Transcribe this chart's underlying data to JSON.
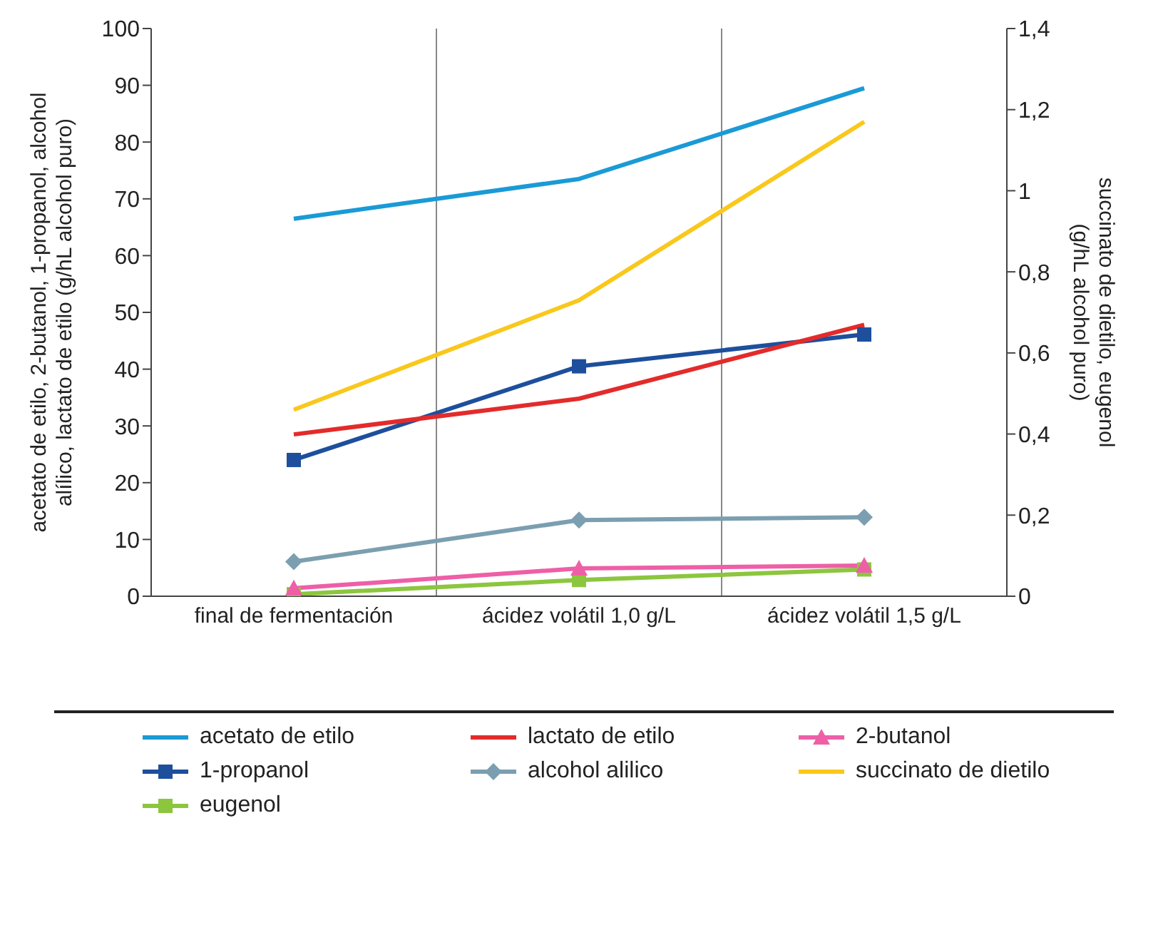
{
  "chart_data": {
    "type": "line",
    "ylabel": "acetato de etilo, 2-butanol, 1-propanol, alcohol alílico, lactato de etilo (g/hL alcohol puro)",
    "y2label": "succinato de dietilo, eugenol (g/hL alcohol puro)",
    "categories": [
      "final de fermentación",
      "ácidez volátil 1,0 g/L",
      "ácidez volátil 1,5 g/L"
    ],
    "series": [
      {
        "name": "acetato de etilo",
        "color": "#1a9ad6",
        "marker": "none",
        "values": [
          66.5,
          73.5,
          89.5
        ]
      },
      {
        "name": "lactato de etilo",
        "color": "#e32b2b",
        "marker": "none",
        "values": [
          28.5,
          34.8,
          47.8
        ]
      },
      {
        "name": "2-butanol",
        "color": "#ee5fa7",
        "marker": "triangle",
        "values": [
          1.4,
          4.9,
          5.4
        ]
      },
      {
        "name": "1-propanol",
        "color": "#1d4f9c",
        "marker": "square",
        "values": [
          24,
          40.5,
          46.1
        ]
      },
      {
        "name": "alcohol alilico",
        "color": "#7b9fb0",
        "marker": "diamond",
        "values": [
          6.1,
          13.4,
          13.9
        ]
      },
      {
        "name": "succinato de dietilo",
        "color": "#f9c81c",
        "marker": "none",
        "axis": "y2",
        "values": [
          0.46,
          0.73,
          1.17
        ]
      },
      {
        "name": "eugenol",
        "color": "#8cc63f",
        "marker": "square",
        "axis": "y2",
        "values": [
          0.005,
          0.04,
          0.066
        ]
      }
    ],
    "ylim": [
      0,
      100
    ],
    "yticks": [
      0,
      10,
      20,
      30,
      40,
      50,
      60,
      70,
      80,
      90,
      100
    ],
    "y2lim": [
      0,
      1.4
    ],
    "y2ticks": [
      0,
      {
        "value": 0.2,
        "label": "0,2"
      },
      {
        "value": 0.4,
        "label": "0,4"
      },
      {
        "value": 0.6,
        "label": "0,6"
      },
      {
        "value": 0.8,
        "label": "0,8"
      },
      1,
      {
        "value": 1.2,
        "label": "1,2"
      },
      {
        "value": 1.4,
        "label": "1,4"
      }
    ],
    "grid": "x",
    "legend": "bottom",
    "line_style": "solid"
  }
}
